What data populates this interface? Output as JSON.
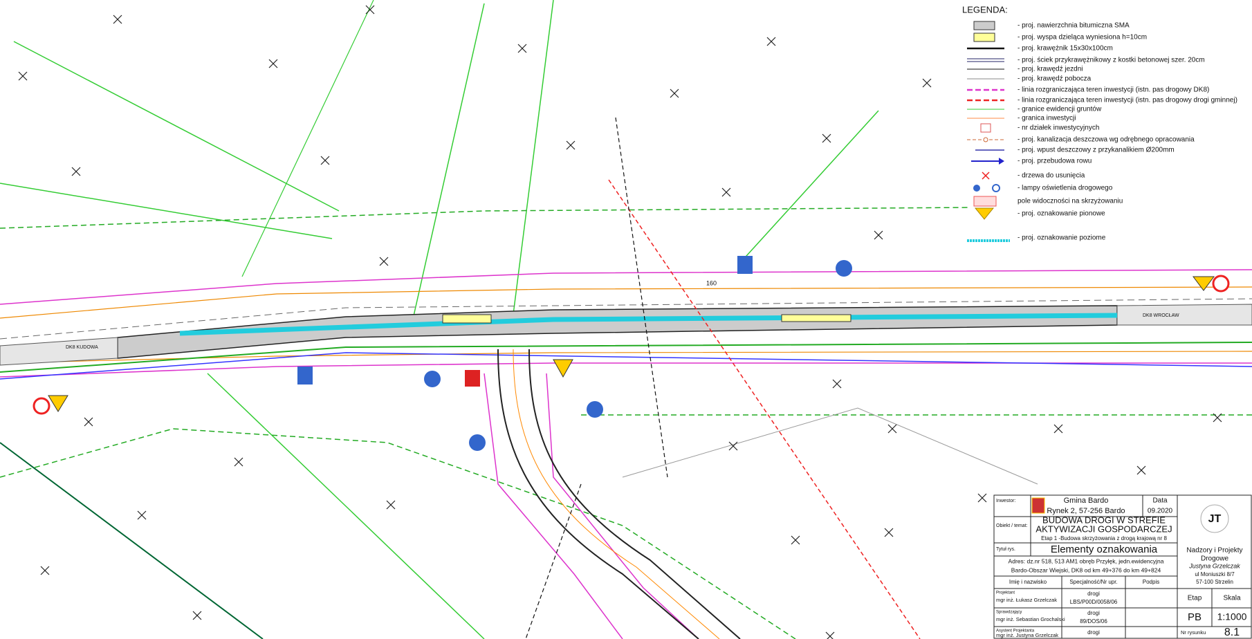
{
  "legend": {
    "title": "LEGENDA:",
    "items": [
      "- proj. nawierzchnia bitumiczna SMA",
      "- proj. wyspa dzieląca wyniesiona h=10cm",
      "- proj. krawężnik 15x30x100cm",
      "- proj. ściek przykrawężnikowy z kostki betonowej szer. 20cm",
      "- proj. krawędź jezdni",
      "- proj. krawędź pobocza",
      "- linia rozgraniczająca teren inwestycji (istn. pas drogowy DK8)",
      "- linia rozgraniczająca teren inwestycji (istn. pas drogowy drogi gminnej)",
      "- granice ewidencji gruntów",
      "- granica inwestycji",
      "- nr działek inwestycyjnych",
      "- proj. kanalizacja deszczowa wg odrębnego opracowania",
      "- proj. wpust deszczowy z przykanalikiem Ø200mm",
      "- proj. przebudowa rowu",
      "- drzewa do usunięcia",
      "- lampy oświetlenia drogowego",
      "pole widoczności na skrzyżowaniu",
      "- proj. oznakowanie pionowe",
      "- proj. oznakowanie poziome"
    ]
  },
  "map_labels": {
    "west": "DK8 KUDOWA",
    "east": "DK8 WROCŁAW",
    "chainage": "160"
  },
  "title_block": {
    "investor_label": "Inwestor:",
    "investor_name": "Gmina Bardo",
    "investor_address": "Rynek 2, 57-256 Bardo",
    "date_label": "Data",
    "date": "09.2020",
    "object_label": "Obiekt / temat:",
    "object_line1": "BUDOWA DROGI W STREFIE",
    "object_line2": "AKTYWIZACJI GOSPODARCZEJ",
    "object_line3": "Etap 1 -Budowa skrzyżowania z drogą krajową nr 8",
    "title_label": "Tytuł rys.",
    "title": "Elementy oznakowania",
    "address_line1": "Adres: dz.nr 518, 513 AM1 obręb Przyłęk, jedn.ewidencyjna",
    "address_line2": "Bardo-Obszar Wiejski, DK8 od km 49+376 do km 49+824",
    "col_name": "Imię i nazwisko",
    "col_spec": "Specjalność/Nr upr.",
    "col_sign": "Podpis",
    "people": [
      {
        "role": "Projektant",
        "name": "mgr inż. Łukasz Grzelczak",
        "spec": "drogi",
        "number": "LBS/P00D/0058/06"
      },
      {
        "role": "Sprawdzający",
        "name": "mgr inż. Sebastian Grochalski",
        "spec": "drogi",
        "number": "89/DOS/06"
      },
      {
        "role": "Asystent Projektanta",
        "name": "mgr inż. Justyna Grzelczak",
        "spec": "drogi"
      }
    ],
    "company_logo": "JT",
    "company_line1": "Nadzory i Projekty",
    "company_line2": "Drogowe",
    "company_owner": "Justyna Grzelczak",
    "company_street": "ul Moniuszki 8/7",
    "company_city": "57-100 Strzelin",
    "stage_label": "Etap",
    "scale_label": "Skala",
    "stage": "PB",
    "scale": "1:1000",
    "drawing_no_label": "Nr rysunku",
    "drawing_no": "8.1"
  }
}
